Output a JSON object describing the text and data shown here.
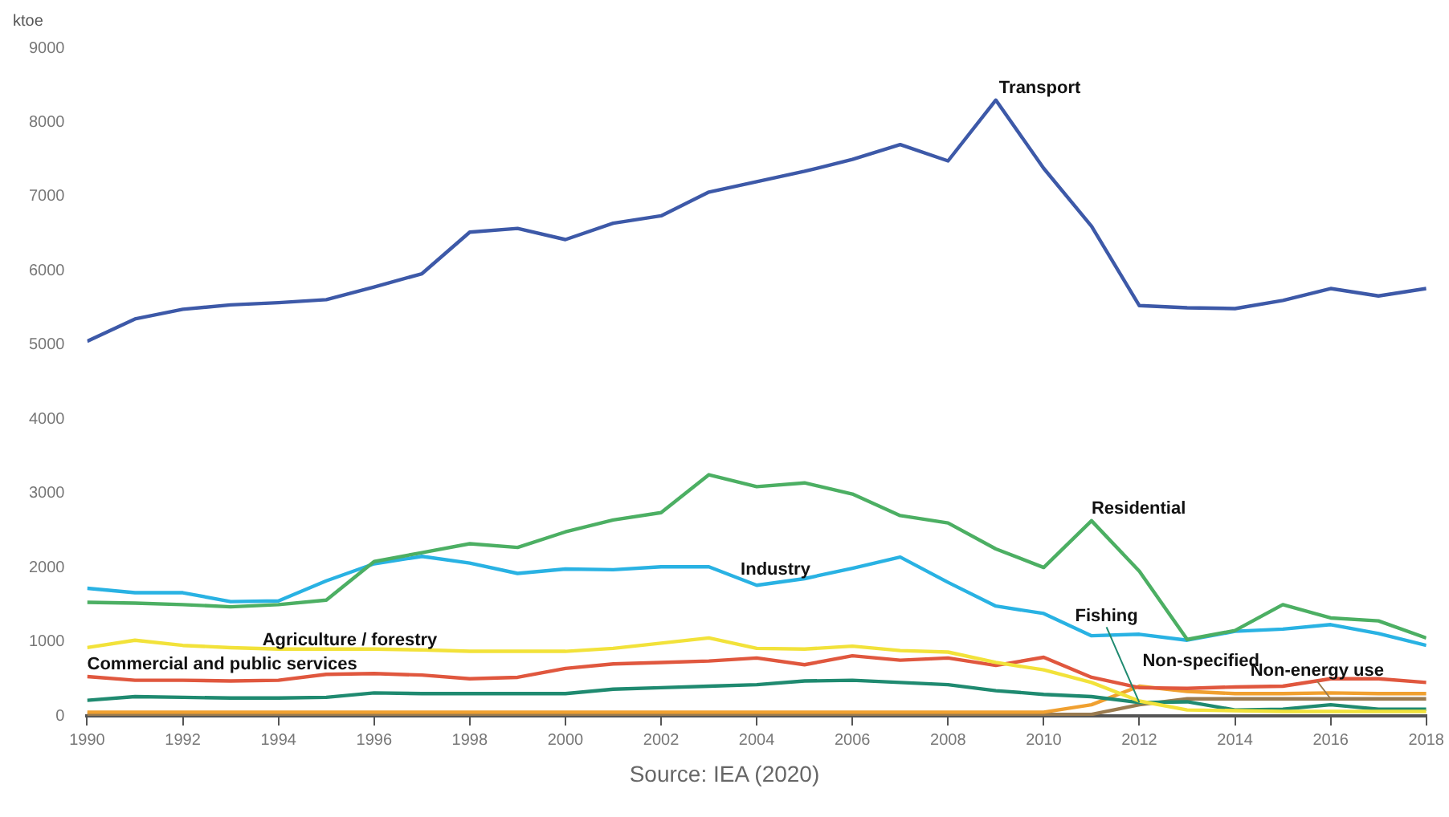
{
  "chart_data": {
    "type": "line",
    "ylabel": "ktoe",
    "annotations": [
      "Source: IEA (2020)"
    ],
    "x": [
      1990,
      1991,
      1992,
      1993,
      1994,
      1995,
      1996,
      1997,
      1998,
      1999,
      2000,
      2001,
      2002,
      2003,
      2004,
      2005,
      2006,
      2007,
      2008,
      2009,
      2010,
      2011,
      2012,
      2013,
      2014,
      2015,
      2016,
      2017,
      2018
    ],
    "xlim": [
      1990,
      2018
    ],
    "xticks": [
      1990,
      1992,
      1994,
      1996,
      1998,
      2000,
      2002,
      2004,
      2006,
      2008,
      2010,
      2012,
      2014,
      2016,
      2018
    ],
    "ylim": [
      0,
      9000
    ],
    "yticks": [
      0,
      1000,
      2000,
      3000,
      4000,
      5000,
      6000,
      7000,
      8000,
      9000
    ],
    "grid": false,
    "legend": false,
    "marker": "none",
    "line_style": "solid",
    "series": [
      {
        "name": "Transport",
        "color": "#3d59a8",
        "values": [
          5050,
          5350,
          5480,
          5540,
          5570,
          5610,
          5780,
          5960,
          6520,
          6570,
          6420,
          6640,
          6740,
          7060,
          7200,
          7340,
          7500,
          7700,
          7480,
          8300,
          7380,
          6600,
          5530,
          5500,
          5490,
          5600,
          5760,
          5660,
          5760
        ]
      },
      {
        "name": "Residential",
        "color": "#4caf63",
        "values": [
          1530,
          1520,
          1500,
          1470,
          1500,
          1560,
          2080,
          2200,
          2320,
          2270,
          2480,
          2640,
          2740,
          3250,
          3090,
          3140,
          2990,
          2700,
          2600,
          2250,
          2000,
          2630,
          1950,
          1030,
          1150,
          1500,
          1320,
          1280,
          1050
        ]
      },
      {
        "name": "Industry",
        "color": "#29b2e3",
        "values": [
          1720,
          1660,
          1660,
          1540,
          1550,
          1820,
          2050,
          2150,
          2060,
          1920,
          1980,
          1970,
          2010,
          2010,
          1760,
          1850,
          1990,
          2140,
          1800,
          1480,
          1380,
          1080,
          1100,
          1020,
          1140,
          1170,
          1230,
          1110,
          950
        ]
      },
      {
        "name": "Agriculture / forestry",
        "color": "#f2e23a",
        "values": [
          920,
          1020,
          950,
          920,
          900,
          900,
          900,
          890,
          870,
          870,
          870,
          910,
          980,
          1050,
          910,
          900,
          940,
          880,
          860,
          720,
          620,
          450,
          200,
          80,
          70,
          60,
          60,
          60,
          60
        ]
      },
      {
        "name": "Commercial and public services",
        "color": "#e0573e",
        "values": [
          530,
          480,
          480,
          470,
          480,
          560,
          570,
          550,
          500,
          520,
          640,
          700,
          720,
          740,
          780,
          690,
          810,
          750,
          780,
          680,
          790,
          520,
          380,
          370,
          390,
          400,
          500,
          500,
          450
        ]
      },
      {
        "name": "Fishing",
        "color": "#1f8a70",
        "values": [
          210,
          260,
          250,
          240,
          240,
          250,
          310,
          300,
          300,
          300,
          300,
          360,
          380,
          400,
          420,
          470,
          480,
          450,
          420,
          340,
          290,
          260,
          180,
          190,
          80,
          90,
          150,
          90,
          90
        ]
      },
      {
        "name": "Non-specified",
        "color": "#f0a030",
        "values": [
          50,
          50,
          50,
          50,
          50,
          50,
          50,
          50,
          50,
          50,
          50,
          50,
          50,
          50,
          50,
          50,
          50,
          50,
          50,
          50,
          50,
          150,
          400,
          330,
          300,
          300,
          310,
          300,
          300
        ]
      },
      {
        "name": "Non-energy use",
        "color": "#9a7b4f",
        "values": [
          20,
          20,
          20,
          20,
          20,
          20,
          20,
          20,
          20,
          20,
          20,
          20,
          20,
          20,
          20,
          20,
          20,
          20,
          20,
          20,
          20,
          20,
          150,
          230,
          230,
          230,
          230,
          230,
          230
        ]
      }
    ]
  }
}
